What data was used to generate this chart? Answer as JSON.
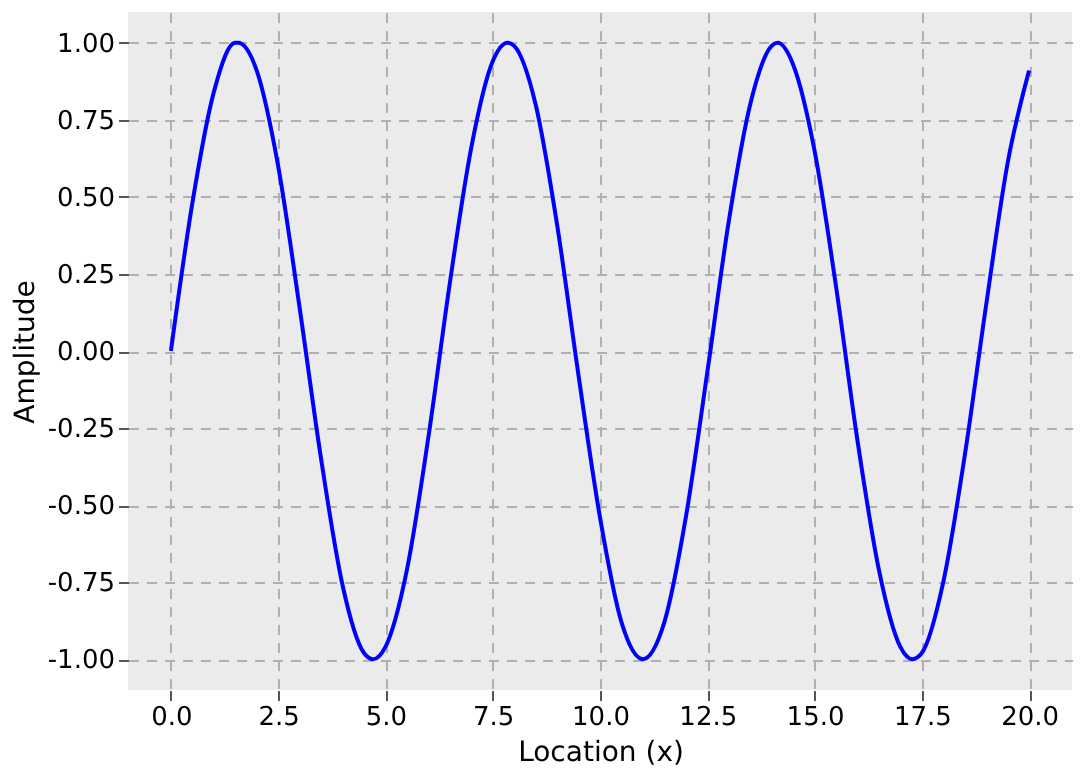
{
  "chart_data": {
    "type": "line",
    "xlabel": "Location (x)",
    "ylabel": "Amplitude",
    "x": [
      0,
      0.5,
      1,
      1.5,
      1.57,
      2,
      2.5,
      3,
      3.5,
      4,
      4.5,
      4.71,
      5,
      5.5,
      6,
      6.5,
      7,
      7.5,
      7.85,
      8,
      8.5,
      9,
      9.5,
      10,
      10.5,
      11,
      11.5,
      12,
      12.5,
      13,
      13.5,
      14,
      14.14,
      14.5,
      15,
      15.5,
      16,
      16.5,
      17,
      17.28,
      17.5,
      18,
      18.5,
      19,
      19.5,
      20
    ],
    "series": [
      {
        "color": "#0000ff",
        "values": [
          0,
          0.48,
          0.84,
          1.0,
          1.0,
          0.91,
          0.6,
          0.14,
          -0.35,
          -0.76,
          -0.98,
          -1.0,
          -0.96,
          -0.71,
          -0.28,
          0.22,
          0.66,
          0.94,
          1.0,
          0.99,
          0.8,
          0.41,
          -0.08,
          -0.54,
          -0.88,
          -1.0,
          -0.88,
          -0.54,
          -0.07,
          0.42,
          0.8,
          0.99,
          1.0,
          0.93,
          0.65,
          0.21,
          -0.29,
          -0.71,
          -0.96,
          -1.0,
          -0.98,
          -0.75,
          -0.34,
          0.15,
          0.61,
          0.91
        ]
      }
    ],
    "xlim": [
      -1,
      21
    ],
    "ylim": [
      -1.1,
      1.1
    ],
    "xticks": [
      {
        "value": 0,
        "label": "0.0"
      },
      2.5,
      {
        "value": 5,
        "label": "5.0"
      },
      7.5,
      {
        "value": 10,
        "label": "10.0"
      },
      12.5,
      {
        "value": 15,
        "label": "15.0"
      },
      17.5,
      {
        "value": 20,
        "label": "20.0"
      }
    ],
    "yticks": [
      {
        "value": -1,
        "label": "-1.00"
      },
      {
        "value": -0.75,
        "label": "-0.75"
      },
      {
        "value": -0.5,
        "label": "-0.50"
      },
      {
        "value": -0.25,
        "label": "-0.25"
      },
      {
        "value": 0,
        "label": "0.00"
      },
      {
        "value": 0.25,
        "label": "0.25"
      },
      {
        "value": 0.5,
        "label": "0.50"
      },
      {
        "value": 0.75,
        "label": "0.75"
      },
      {
        "value": 1,
        "label": "1.00"
      }
    ],
    "grid": true,
    "line_style": "solid",
    "marker": "none"
  }
}
